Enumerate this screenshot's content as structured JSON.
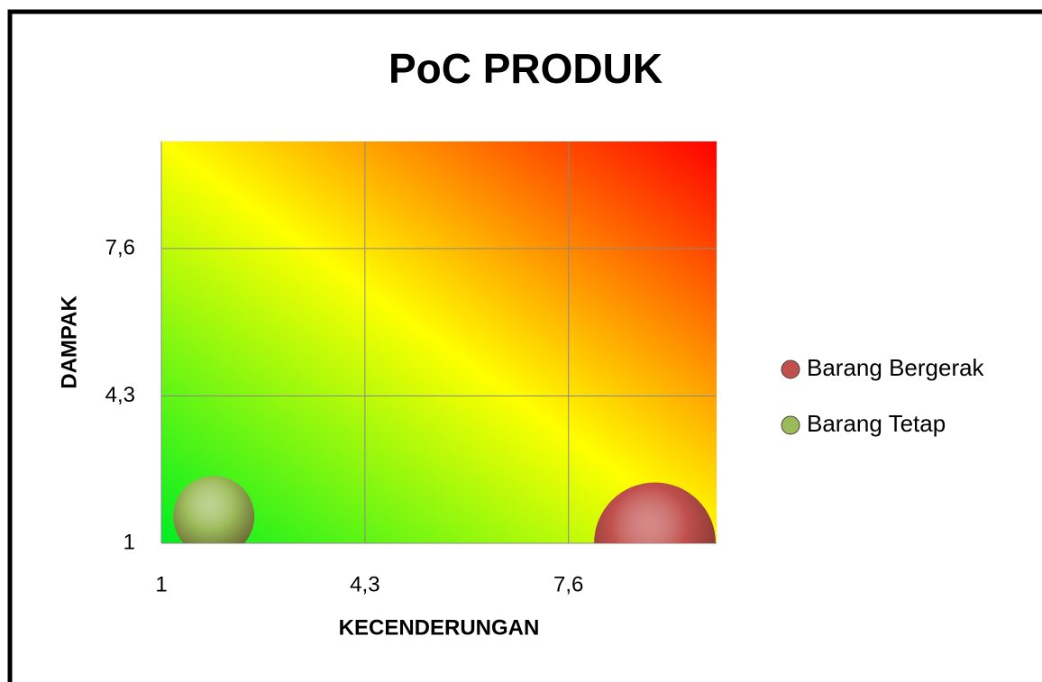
{
  "chart_data": {
    "type": "bubble",
    "title": "PoC PRODUK",
    "xlabel": "KECENDERUNGAN",
    "ylabel": "DAMPAK",
    "xlim": [
      1,
      10
    ],
    "ylim": [
      1,
      10
    ],
    "xticks": [
      1,
      {
        "value": 4.3,
        "label": "4,3"
      },
      {
        "value": 7.6,
        "label": "7,6"
      }
    ],
    "yticks": [
      1,
      {
        "value": 4.3,
        "label": "4,3"
      },
      {
        "value": 7.6,
        "label": "7,6"
      }
    ],
    "grid": true,
    "legend": "right",
    "series": [
      {
        "name": "Barang Bergerak",
        "color": "#c0504d",
        "x": [
          9.0
        ],
        "values": [
          1.0
        ],
        "sizes": [
          4.5
        ]
      },
      {
        "name": "Barang Tetap",
        "color": "#9bbb59",
        "x": [
          1.85
        ],
        "values": [
          1.6
        ],
        "sizes": [
          2
        ]
      }
    ]
  }
}
